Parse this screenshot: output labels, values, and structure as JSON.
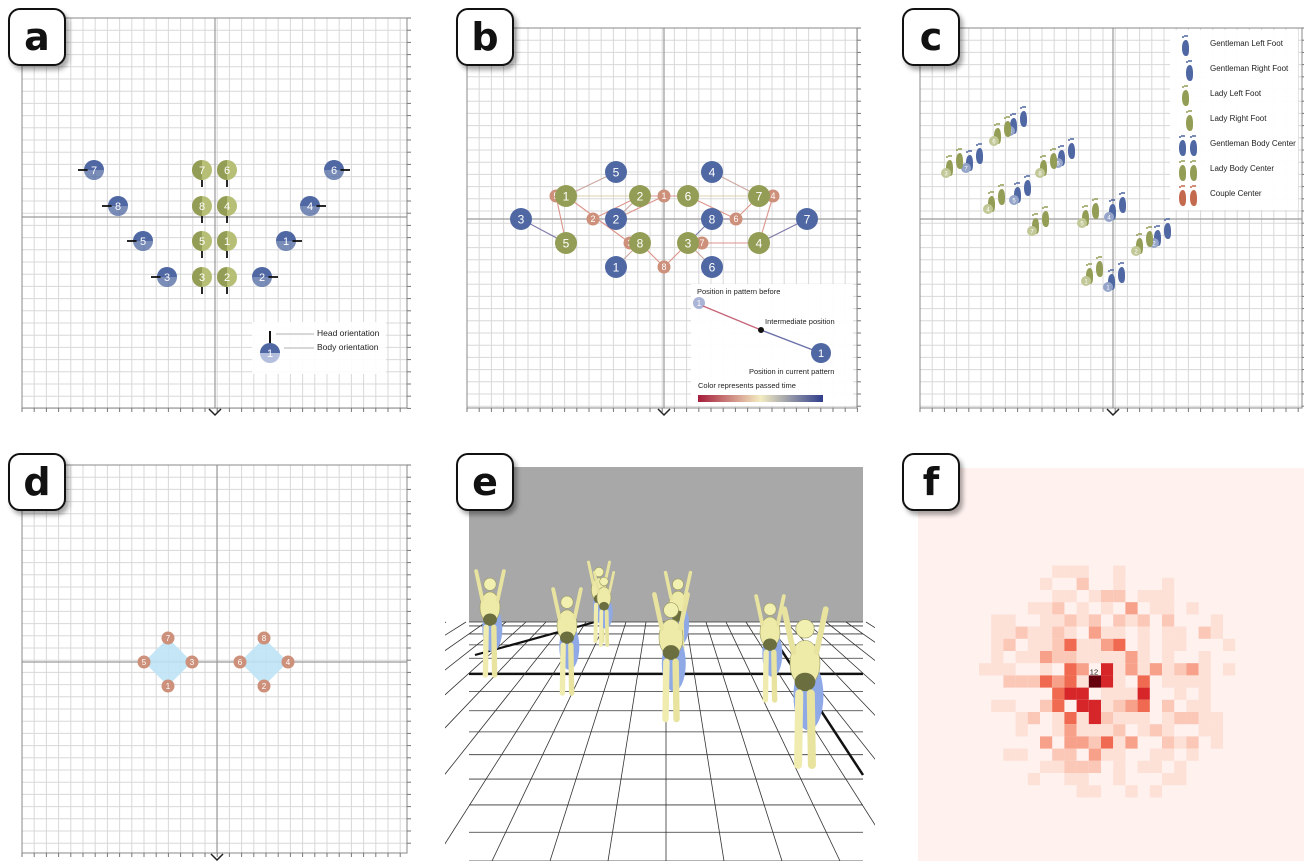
{
  "panels": [
    {
      "id": "a",
      "label": "a"
    },
    {
      "id": "b",
      "label": "b"
    },
    {
      "id": "c",
      "label": "c"
    },
    {
      "id": "d",
      "label": "d"
    },
    {
      "id": "e",
      "label": "e"
    },
    {
      "id": "f",
      "label": "f"
    }
  ],
  "colors": {
    "gentleman": "#4f67a2",
    "lady": "#949d55",
    "lady_light": "#b6bf75",
    "center": "#cd907b",
    "couple_area": "#bfe3f5",
    "grid_minor": "#d8d8d8",
    "grid_major": "#bcbcbc"
  },
  "panel_a": {
    "legend": {
      "head": "Head orientation",
      "body": "Body orientation",
      "sample_number": "1"
    },
    "gentleman_numbers": [
      "7",
      "8",
      "5",
      "3",
      "2",
      "1",
      "4",
      "6"
    ],
    "lady_numbers": [
      "7",
      "6",
      "8",
      "4",
      "5",
      "1",
      "3",
      "2"
    ]
  },
  "panel_b": {
    "legend": {
      "before": "Position in pattern before",
      "intermediate": "Intermediate position",
      "current": "Position in current pattern",
      "time": "Color represents passed time",
      "before_number": "1",
      "current_number": "1"
    },
    "gentleman_numbers": [
      "5",
      "4",
      "3",
      "2",
      "8",
      "7",
      "1",
      "6"
    ],
    "lady_numbers": [
      "1",
      "2",
      "6",
      "7",
      "5",
      "8",
      "3",
      "4"
    ],
    "center_numbers": [
      "5",
      "2",
      "1",
      "4",
      "6",
      "3",
      "7",
      "8"
    ]
  },
  "panel_c": {
    "legend": [
      "Gentleman Left Foot",
      "Gentleman Right Foot",
      "Lady Left Foot",
      "Lady Right Foot",
      "Gentleman Body Center",
      "Lady Body Center",
      "Couple Center"
    ],
    "gentleman_numbers": [
      "8",
      "7",
      "5",
      "6",
      "4",
      "2",
      "1"
    ],
    "lady_numbers": [
      "6",
      "3",
      "8",
      "4",
      "7",
      "5",
      "2",
      "1"
    ]
  },
  "panel_d": {
    "center_numbers": [
      "7",
      "5",
      "3",
      "1",
      "8",
      "6",
      "4",
      "2"
    ]
  },
  "panel_e": {
    "figure_count": 8,
    "content": "3D dancer figures on a grid floor"
  },
  "panel_f": {
    "peak_label": "12"
  }
}
